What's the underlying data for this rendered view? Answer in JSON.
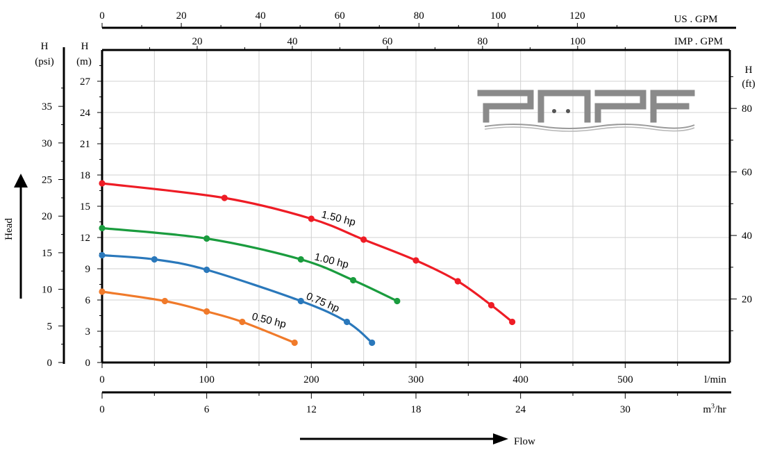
{
  "chart_data": {
    "type": "line",
    "title": "",
    "axes": {
      "flow_lmin": {
        "label": "l/min",
        "range": [
          0,
          600
        ],
        "ticks": [
          0,
          100,
          200,
          300,
          400,
          500
        ]
      },
      "flow_m3hr": {
        "label_main": "m",
        "label_sup": "3",
        "label_tail": "/hr",
        "range": [
          0,
          36
        ],
        "ticks": [
          0,
          6,
          12,
          18,
          24,
          30
        ]
      },
      "flow_usgpm": {
        "label": "US . GPM",
        "range": [
          0,
          158.5
        ],
        "ticks": [
          0,
          20,
          40,
          60,
          80,
          100,
          120
        ]
      },
      "flow_impgpm": {
        "label": "IMP . GPM",
        "range": [
          0,
          132
        ],
        "ticks": [
          20,
          40,
          60,
          80,
          100
        ]
      },
      "head_m": {
        "label_top": "H",
        "label_unit": "(m)",
        "range": [
          0,
          30
        ],
        "ticks": [
          0,
          3,
          6,
          9,
          12,
          15,
          18,
          21,
          24,
          27
        ]
      },
      "head_psi": {
        "label_top": "H",
        "label_unit": "(psi)",
        "range": [
          0,
          42.7
        ],
        "ticks": [
          0,
          5,
          10,
          15,
          20,
          25,
          30,
          35
        ]
      },
      "head_ft": {
        "label_top": "H",
        "label_unit": "(ft)",
        "range": [
          0,
          98.4
        ],
        "ticks": [
          20,
          40,
          60,
          80
        ]
      }
    },
    "series": [
      {
        "name": "1.50 hp",
        "color": "#ee1c25",
        "x": [
          0,
          117,
          200,
          250,
          300,
          340,
          372,
          392
        ],
        "y": [
          17.2,
          15.8,
          13.8,
          11.8,
          9.8,
          7.8,
          5.5,
          3.9
        ]
      },
      {
        "name": "1.00 hp",
        "color": "#1a9c3e",
        "x": [
          0,
          100,
          190,
          240,
          282
        ],
        "y": [
          12.9,
          11.9,
          9.9,
          7.9,
          5.9
        ]
      },
      {
        "name": "0.75 hp",
        "color": "#2a78bb",
        "x": [
          0,
          50,
          100,
          190,
          234,
          258
        ],
        "y": [
          10.3,
          9.9,
          8.9,
          5.9,
          3.9,
          1.9
        ]
      },
      {
        "name": "0.50 hp",
        "color": "#f07a2a",
        "x": [
          0,
          60,
          100,
          134,
          184
        ],
        "y": [
          6.8,
          5.9,
          4.9,
          3.9,
          1.9
        ]
      }
    ],
    "grid": true,
    "logo_text": "PAPF"
  },
  "labels": {
    "head": "Head",
    "flow": "Flow"
  }
}
